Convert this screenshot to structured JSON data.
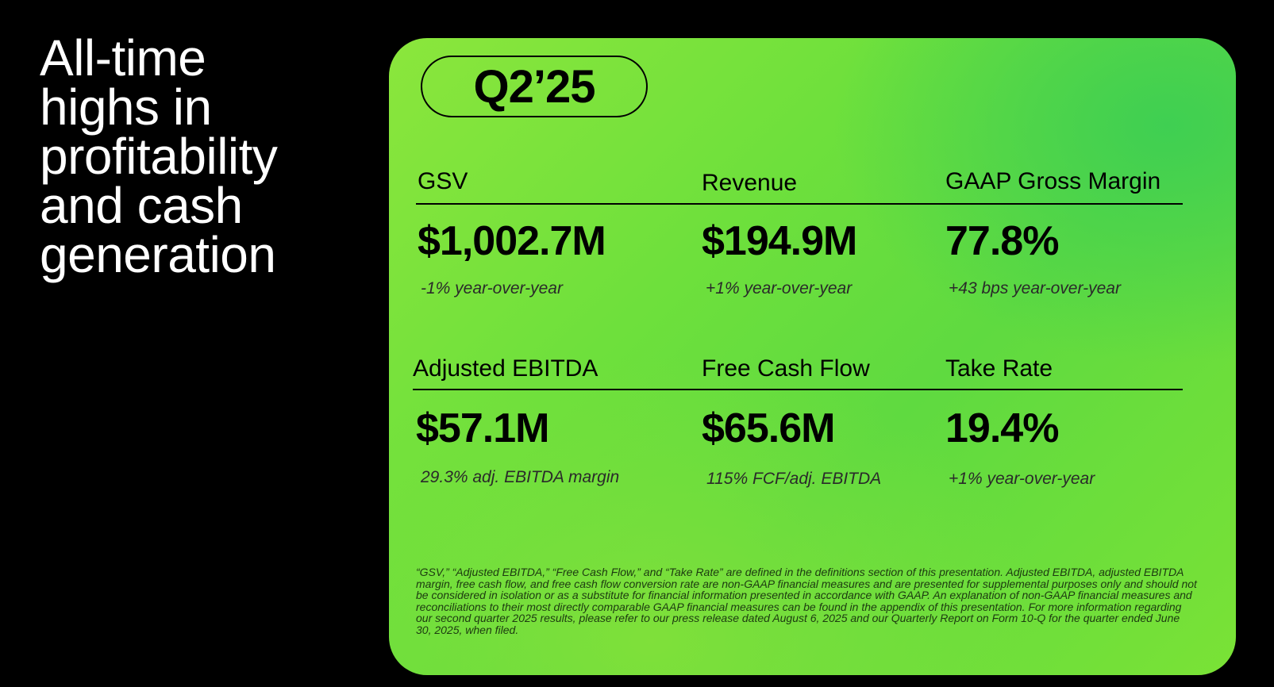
{
  "headline": {
    "lines": [
      "All-time",
      "highs in",
      "profitability",
      "and cash",
      "generation"
    ]
  },
  "card": {
    "quarter": "Q2’25",
    "row1": [
      {
        "label": "GSV",
        "value": "$1,002.7M",
        "note": "-1% year-over-year"
      },
      {
        "label": "Revenue",
        "value": "$194.9M",
        "note": "+1% year-over-year"
      },
      {
        "label": "GAAP Gross Margin",
        "value": "77.8%",
        "note": "+43 bps year-over-year"
      }
    ],
    "row2": [
      {
        "label": "Adjusted EBITDA",
        "value": "$57.1M",
        "note": "29.3% adj. EBITDA margin"
      },
      {
        "label": "Free Cash Flow",
        "value": "$65.6M",
        "note": "115% FCF/adj. EBITDA"
      },
      {
        "label": "Take Rate",
        "value": "19.4%",
        "note": "+1% year-over-year"
      }
    ],
    "footnote": "“GSV,” “Adjusted EBITDA,” “Free Cash Flow,” and “Take Rate” are defined in the definitions section of this presentation. Adjusted EBITDA, adjusted EBITDA margin, free cash flow, and free cash flow conversion rate are non-GAAP financial measures and are presented for supplemental purposes only and should not be considered in isolation or as a substitute for financial information presented in accordance with GAAP. An explanation of non-GAAP financial measures and reconciliations to their most directly comparable GAAP financial measures can be found in the appendix of this presentation. For more information regarding our second quarter 2025 results, please refer to our press release dated August 6, 2025 and our Quarterly Report on Form 10-Q for the quarter ended June 30, 2025, when filed."
  },
  "colors": {
    "background": "#000000",
    "card_green": "#6ee03c",
    "text_dark": "#000000",
    "headline_text": "#ffffff"
  }
}
